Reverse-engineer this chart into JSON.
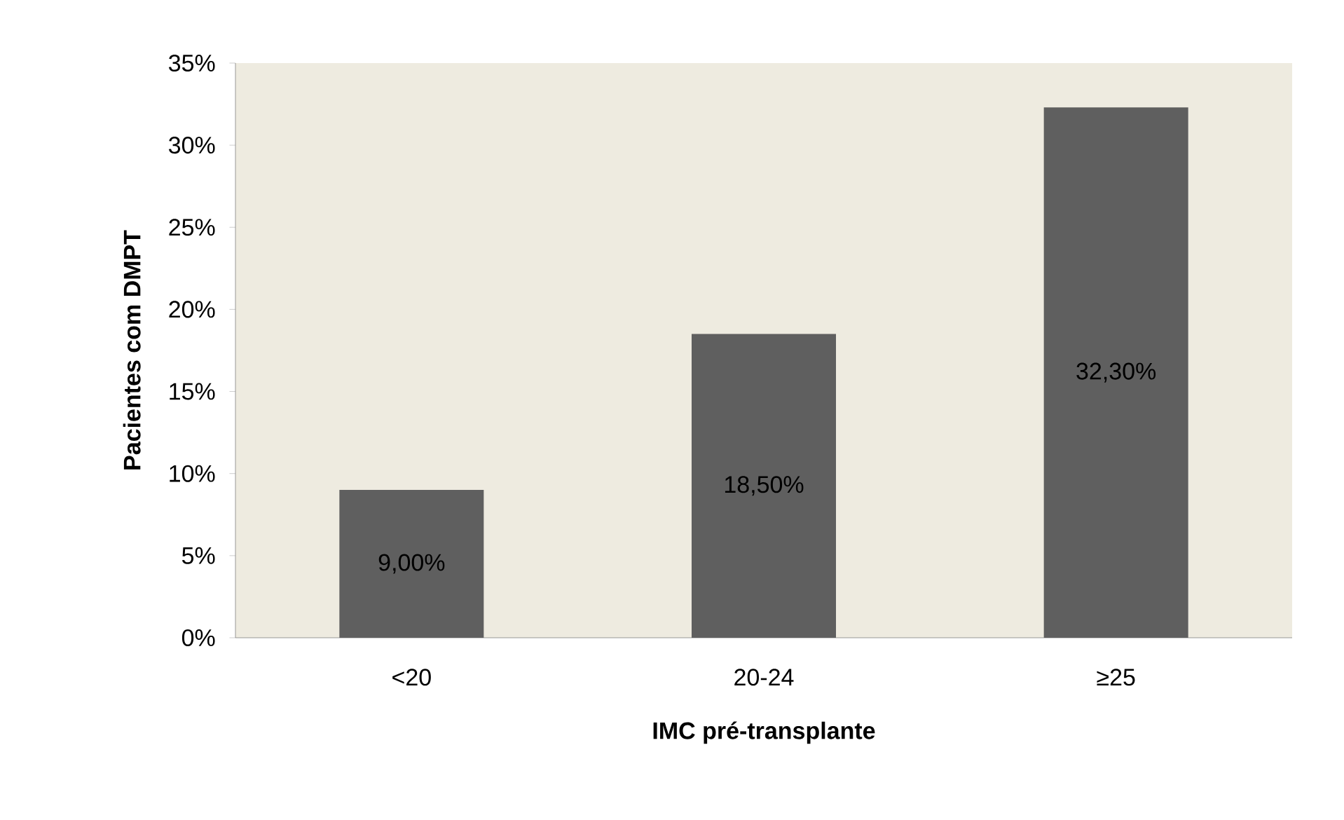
{
  "chart_data": {
    "type": "bar",
    "xlabel": "IMC pré-transplante",
    "ylabel": "Pacientes com DMPT",
    "categories": [
      "<20",
      "20-24",
      "≥25"
    ],
    "values": [
      9.0,
      18.5,
      32.3
    ],
    "value_labels": [
      "9,00%",
      "18,50%",
      "32,30%"
    ],
    "color": "#5f5f5f",
    "ylim": [
      0,
      35
    ],
    "yticks": [
      {
        "value": 0,
        "label": "0%"
      },
      {
        "value": 5,
        "label": "5%"
      },
      {
        "value": 10,
        "label": "10%"
      },
      {
        "value": 15,
        "label": "15%"
      },
      {
        "value": 20,
        "label": "20%"
      },
      {
        "value": 25,
        "label": "25%"
      },
      {
        "value": 30,
        "label": "30%"
      },
      {
        "value": 35,
        "label": "35%"
      }
    ],
    "grid": false
  }
}
